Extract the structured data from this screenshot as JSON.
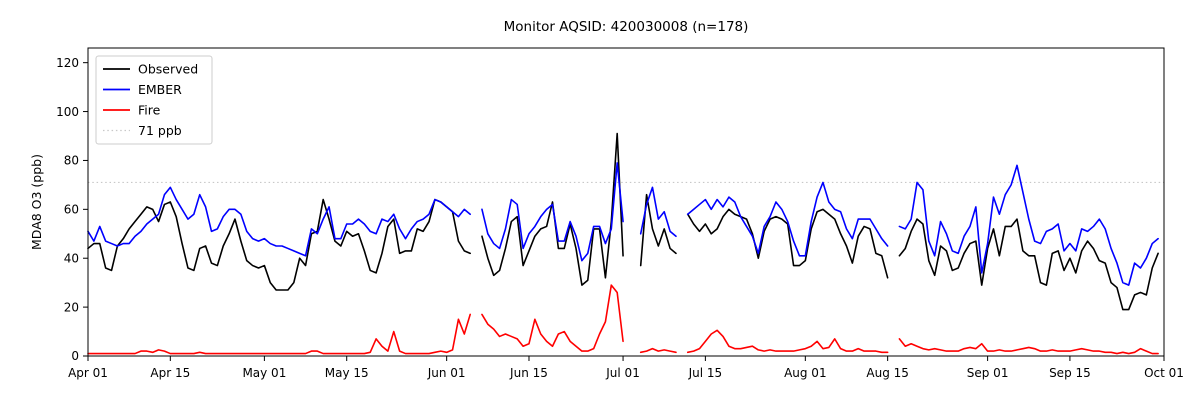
{
  "title": "Monitor AQSID: 420030008 (n=178)",
  "chart_data": {
    "type": "line",
    "title": "Monitor AQSID: 420030008 (n=178)",
    "xlabel": "",
    "ylabel": "MDA8 O3 (ppb)",
    "grid": false,
    "legend_position": "upper left",
    "ylim": [
      0,
      126
    ],
    "y_ticks": [
      0,
      20,
      40,
      60,
      80,
      100,
      120
    ],
    "x_range_days": 183,
    "x_unit": "days since Apr 01",
    "x_ticks": [
      {
        "day": 0,
        "label": "Apr 01"
      },
      {
        "day": 14,
        "label": "Apr 15"
      },
      {
        "day": 30,
        "label": "May 01"
      },
      {
        "day": 44,
        "label": "May 15"
      },
      {
        "day": 61,
        "label": "Jun 01"
      },
      {
        "day": 75,
        "label": "Jun 15"
      },
      {
        "day": 91,
        "label": "Jul 01"
      },
      {
        "day": 105,
        "label": "Jul 15"
      },
      {
        "day": 122,
        "label": "Aug 01"
      },
      {
        "day": 136,
        "label": "Aug 15"
      },
      {
        "day": 153,
        "label": "Sep 01"
      },
      {
        "day": 167,
        "label": "Sep 15"
      },
      {
        "day": 183,
        "label": "Oct 01"
      }
    ],
    "reference_line": {
      "value": 71,
      "label": "71 ppb",
      "color": "#c8c8c8",
      "style": "dotted"
    },
    "series": [
      {
        "name": "Observed",
        "color": "#000000",
        "values": [
          44,
          46,
          46,
          36,
          35,
          45,
          48,
          52,
          55,
          58,
          61,
          60,
          55,
          62,
          63,
          57,
          46,
          36,
          35,
          44,
          45,
          38,
          37,
          45,
          50,
          56,
          47,
          39,
          37,
          36,
          37,
          30,
          27,
          27,
          27,
          30,
          40,
          37,
          50,
          51,
          64,
          56,
          47,
          45,
          51,
          49,
          50,
          43,
          35,
          34,
          42,
          53,
          56,
          42,
          43,
          43,
          52,
          51,
          55,
          64,
          63,
          61,
          59,
          47,
          43,
          42,
          null,
          49,
          40,
          33,
          35,
          44,
          55,
          57,
          37,
          43,
          49,
          52,
          53,
          63,
          44,
          44,
          54,
          44,
          29,
          31,
          52,
          52,
          32,
          55,
          91,
          41,
          null,
          null,
          37,
          66,
          52,
          45,
          52,
          44,
          42,
          null,
          58,
          54,
          51,
          54,
          50,
          52,
          57,
          60,
          58,
          57,
          56,
          50,
          40,
          51,
          56,
          57,
          56,
          54,
          37,
          37,
          39,
          52,
          59,
          60,
          58,
          56,
          50,
          45,
          38,
          49,
          53,
          52,
          42,
          41,
          32,
          null,
          41,
          44,
          51,
          56,
          54,
          39,
          33,
          45,
          43,
          35,
          36,
          42,
          46,
          47,
          29,
          44,
          52,
          41,
          53,
          53,
          56,
          43,
          41,
          41,
          30,
          29,
          42,
          43,
          35,
          40,
          34,
          43,
          47,
          44,
          39,
          38,
          30,
          28,
          19,
          19,
          25,
          26,
          25,
          36,
          42
        ]
      },
      {
        "name": "EMBER",
        "color": "#0000ff",
        "values": [
          51,
          47,
          53,
          47,
          46,
          45,
          46,
          46,
          49,
          51,
          54,
          56,
          58,
          66,
          69,
          64,
          60,
          56,
          58,
          66,
          61,
          51,
          52,
          57,
          60,
          60,
          58,
          51,
          48,
          47,
          48,
          46,
          45,
          45,
          44,
          43,
          42,
          41,
          52,
          50,
          56,
          61,
          48,
          48,
          54,
          54,
          56,
          54,
          51,
          50,
          56,
          55,
          58,
          52,
          48,
          52,
          55,
          56,
          58,
          64,
          63,
          61,
          59,
          57,
          60,
          58,
          null,
          60,
          50,
          46,
          44,
          52,
          64,
          62,
          44,
          50,
          53,
          57,
          60,
          62,
          47,
          47,
          55,
          49,
          39,
          42,
          53,
          53,
          46,
          52,
          79,
          55,
          null,
          null,
          50,
          62,
          69,
          56,
          59,
          51,
          49,
          null,
          58,
          60,
          62,
          64,
          60,
          64,
          61,
          65,
          63,
          57,
          53,
          49,
          42,
          53,
          57,
          63,
          60,
          55,
          47,
          41,
          41,
          55,
          65,
          71,
          63,
          60,
          59,
          52,
          48,
          56,
          56,
          56,
          52,
          48,
          45,
          null,
          53,
          52,
          56,
          71,
          68,
          47,
          41,
          55,
          50,
          43,
          42,
          49,
          53,
          61,
          34,
          46,
          65,
          58,
          66,
          70,
          78,
          67,
          56,
          47,
          46,
          51,
          52,
          54,
          43,
          46,
          43,
          52,
          51,
          53,
          56,
          52,
          44,
          38,
          30,
          29,
          38,
          36,
          40,
          46,
          48
        ]
      },
      {
        "name": "Fire",
        "color": "#ff0000",
        "values": [
          1,
          1,
          1,
          1,
          1,
          1,
          1,
          1,
          1,
          2,
          2,
          1.5,
          2.5,
          2,
          1,
          1,
          1,
          1,
          1,
          1.5,
          1,
          1,
          1,
          1,
          1,
          1,
          1,
          1,
          1,
          1,
          1,
          1,
          1,
          1,
          1,
          1,
          1,
          1,
          2,
          2,
          1,
          1,
          1,
          1,
          1,
          1,
          1,
          1,
          1.5,
          7,
          4,
          2,
          10,
          2,
          1,
          1,
          1,
          1,
          1,
          1.5,
          2,
          1.5,
          2.5,
          15,
          9,
          17,
          null,
          17,
          13,
          11,
          8,
          9,
          8,
          7,
          4,
          5,
          15,
          9,
          6,
          4,
          9,
          10,
          6,
          4,
          2,
          2,
          3,
          9,
          14,
          29,
          26,
          6,
          null,
          null,
          1.5,
          2,
          3,
          2,
          2.5,
          2,
          1.5,
          null,
          1.5,
          2,
          3,
          6,
          9,
          10.5,
          8,
          4,
          3,
          3,
          3.5,
          4,
          2.5,
          2,
          2.5,
          2,
          2,
          2,
          2,
          2.5,
          3,
          4,
          6,
          3,
          3.5,
          7,
          3,
          2,
          2,
          3,
          2,
          2,
          2,
          1.5,
          1.5,
          null,
          7,
          4,
          5,
          4,
          3,
          2.5,
          3,
          2.5,
          2,
          2,
          2,
          3,
          3.5,
          3,
          5,
          2,
          2,
          2.5,
          2,
          2,
          2.5,
          3,
          3.5,
          3,
          2,
          2,
          2.5,
          2,
          2,
          2,
          2.5,
          3,
          2.5,
          2,
          2,
          1.5,
          1.5,
          1,
          1.5,
          1,
          1.5,
          3,
          2,
          1,
          1
        ]
      }
    ]
  }
}
